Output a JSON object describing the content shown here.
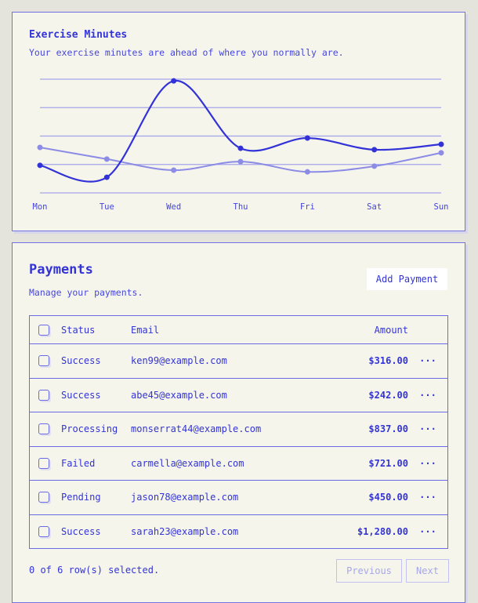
{
  "chart_card": {
    "title": "Exercise Minutes",
    "subtitle": "Your exercise minutes are ahead of where you normally are."
  },
  "chart_data": {
    "type": "line",
    "categories": [
      "Mon",
      "Tue",
      "Wed",
      "Thu",
      "Fri",
      "Sat",
      "Sun"
    ],
    "series": [
      {
        "values": [
          97,
          55,
          394,
          157,
          193,
          152,
          171
        ],
        "color": "#3232d8"
      },
      {
        "values": [
          160,
          119,
          80,
          110,
          74,
          94,
          141
        ],
        "color": "#8c8ce6"
      }
    ],
    "ylim": [
      0,
      400
    ],
    "grid": true,
    "smooth": true
  },
  "payments": {
    "title": "Payments",
    "subtitle": "Manage your payments.",
    "add_label": "Add Payment",
    "headers": {
      "status": "Status",
      "email": "Email",
      "amount": "Amount"
    },
    "rows": [
      {
        "status": "Success",
        "email": "ken99@example.com",
        "amount": "$316.00"
      },
      {
        "status": "Success",
        "email": "abe45@example.com",
        "amount": "$242.00"
      },
      {
        "status": "Processing",
        "email": "monserrat44@example.com",
        "amount": "$837.00"
      },
      {
        "status": "Failed",
        "email": "carmella@example.com",
        "amount": "$721.00"
      },
      {
        "status": "Pending",
        "email": "jason78@example.com",
        "amount": "$450.00"
      },
      {
        "status": "Success",
        "email": "sarah23@example.com",
        "amount": "$1,280.00"
      }
    ],
    "row_action_icon": "more-horizontal-icon",
    "selection_text": "0 of 6 row(s) selected.",
    "prev_label": "Previous",
    "next_label": "Next"
  }
}
